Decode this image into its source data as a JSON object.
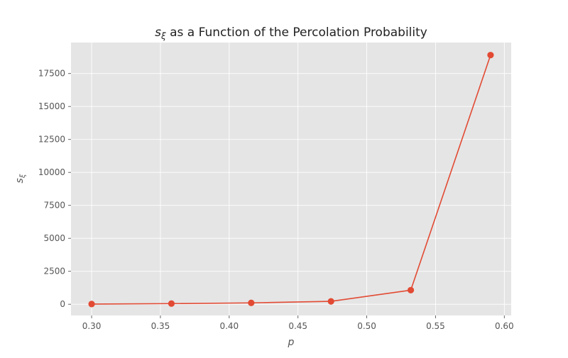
{
  "chart_data": {
    "type": "line",
    "title_symbol": "s",
    "title_subscript": "ξ",
    "title_rest": " as a Function of the Percolation Probability",
    "xlabel": "p",
    "ylabel_symbol": "s",
    "ylabel_subscript": "ξ",
    "x": [
      0.3,
      0.358,
      0.416,
      0.474,
      0.532,
      0.59
    ],
    "series": [
      {
        "values": [
          15,
          50,
          105,
          220,
          1070,
          18900
        ]
      }
    ],
    "xlim": [
      0.285,
      0.605
    ],
    "ylim": [
      -850,
      19850
    ],
    "xticks": [
      0.3,
      0.35,
      0.4,
      0.45,
      0.5,
      0.55,
      0.6
    ],
    "xtick_labels": [
      "0.30",
      "0.35",
      "0.40",
      "0.45",
      "0.50",
      "0.55",
      "0.60"
    ],
    "yticks": [
      0,
      2500,
      5000,
      7500,
      10000,
      12500,
      15000,
      17500
    ],
    "ytick_labels": [
      "0",
      "2500",
      "5000",
      "7500",
      "10000",
      "12500",
      "15000",
      "17500"
    ],
    "grid": true,
    "colors": {
      "series": "#E24A33",
      "plot_bg": "#E5E5E5",
      "grid": "#FFFFFF",
      "tick_text": "#555555"
    }
  }
}
